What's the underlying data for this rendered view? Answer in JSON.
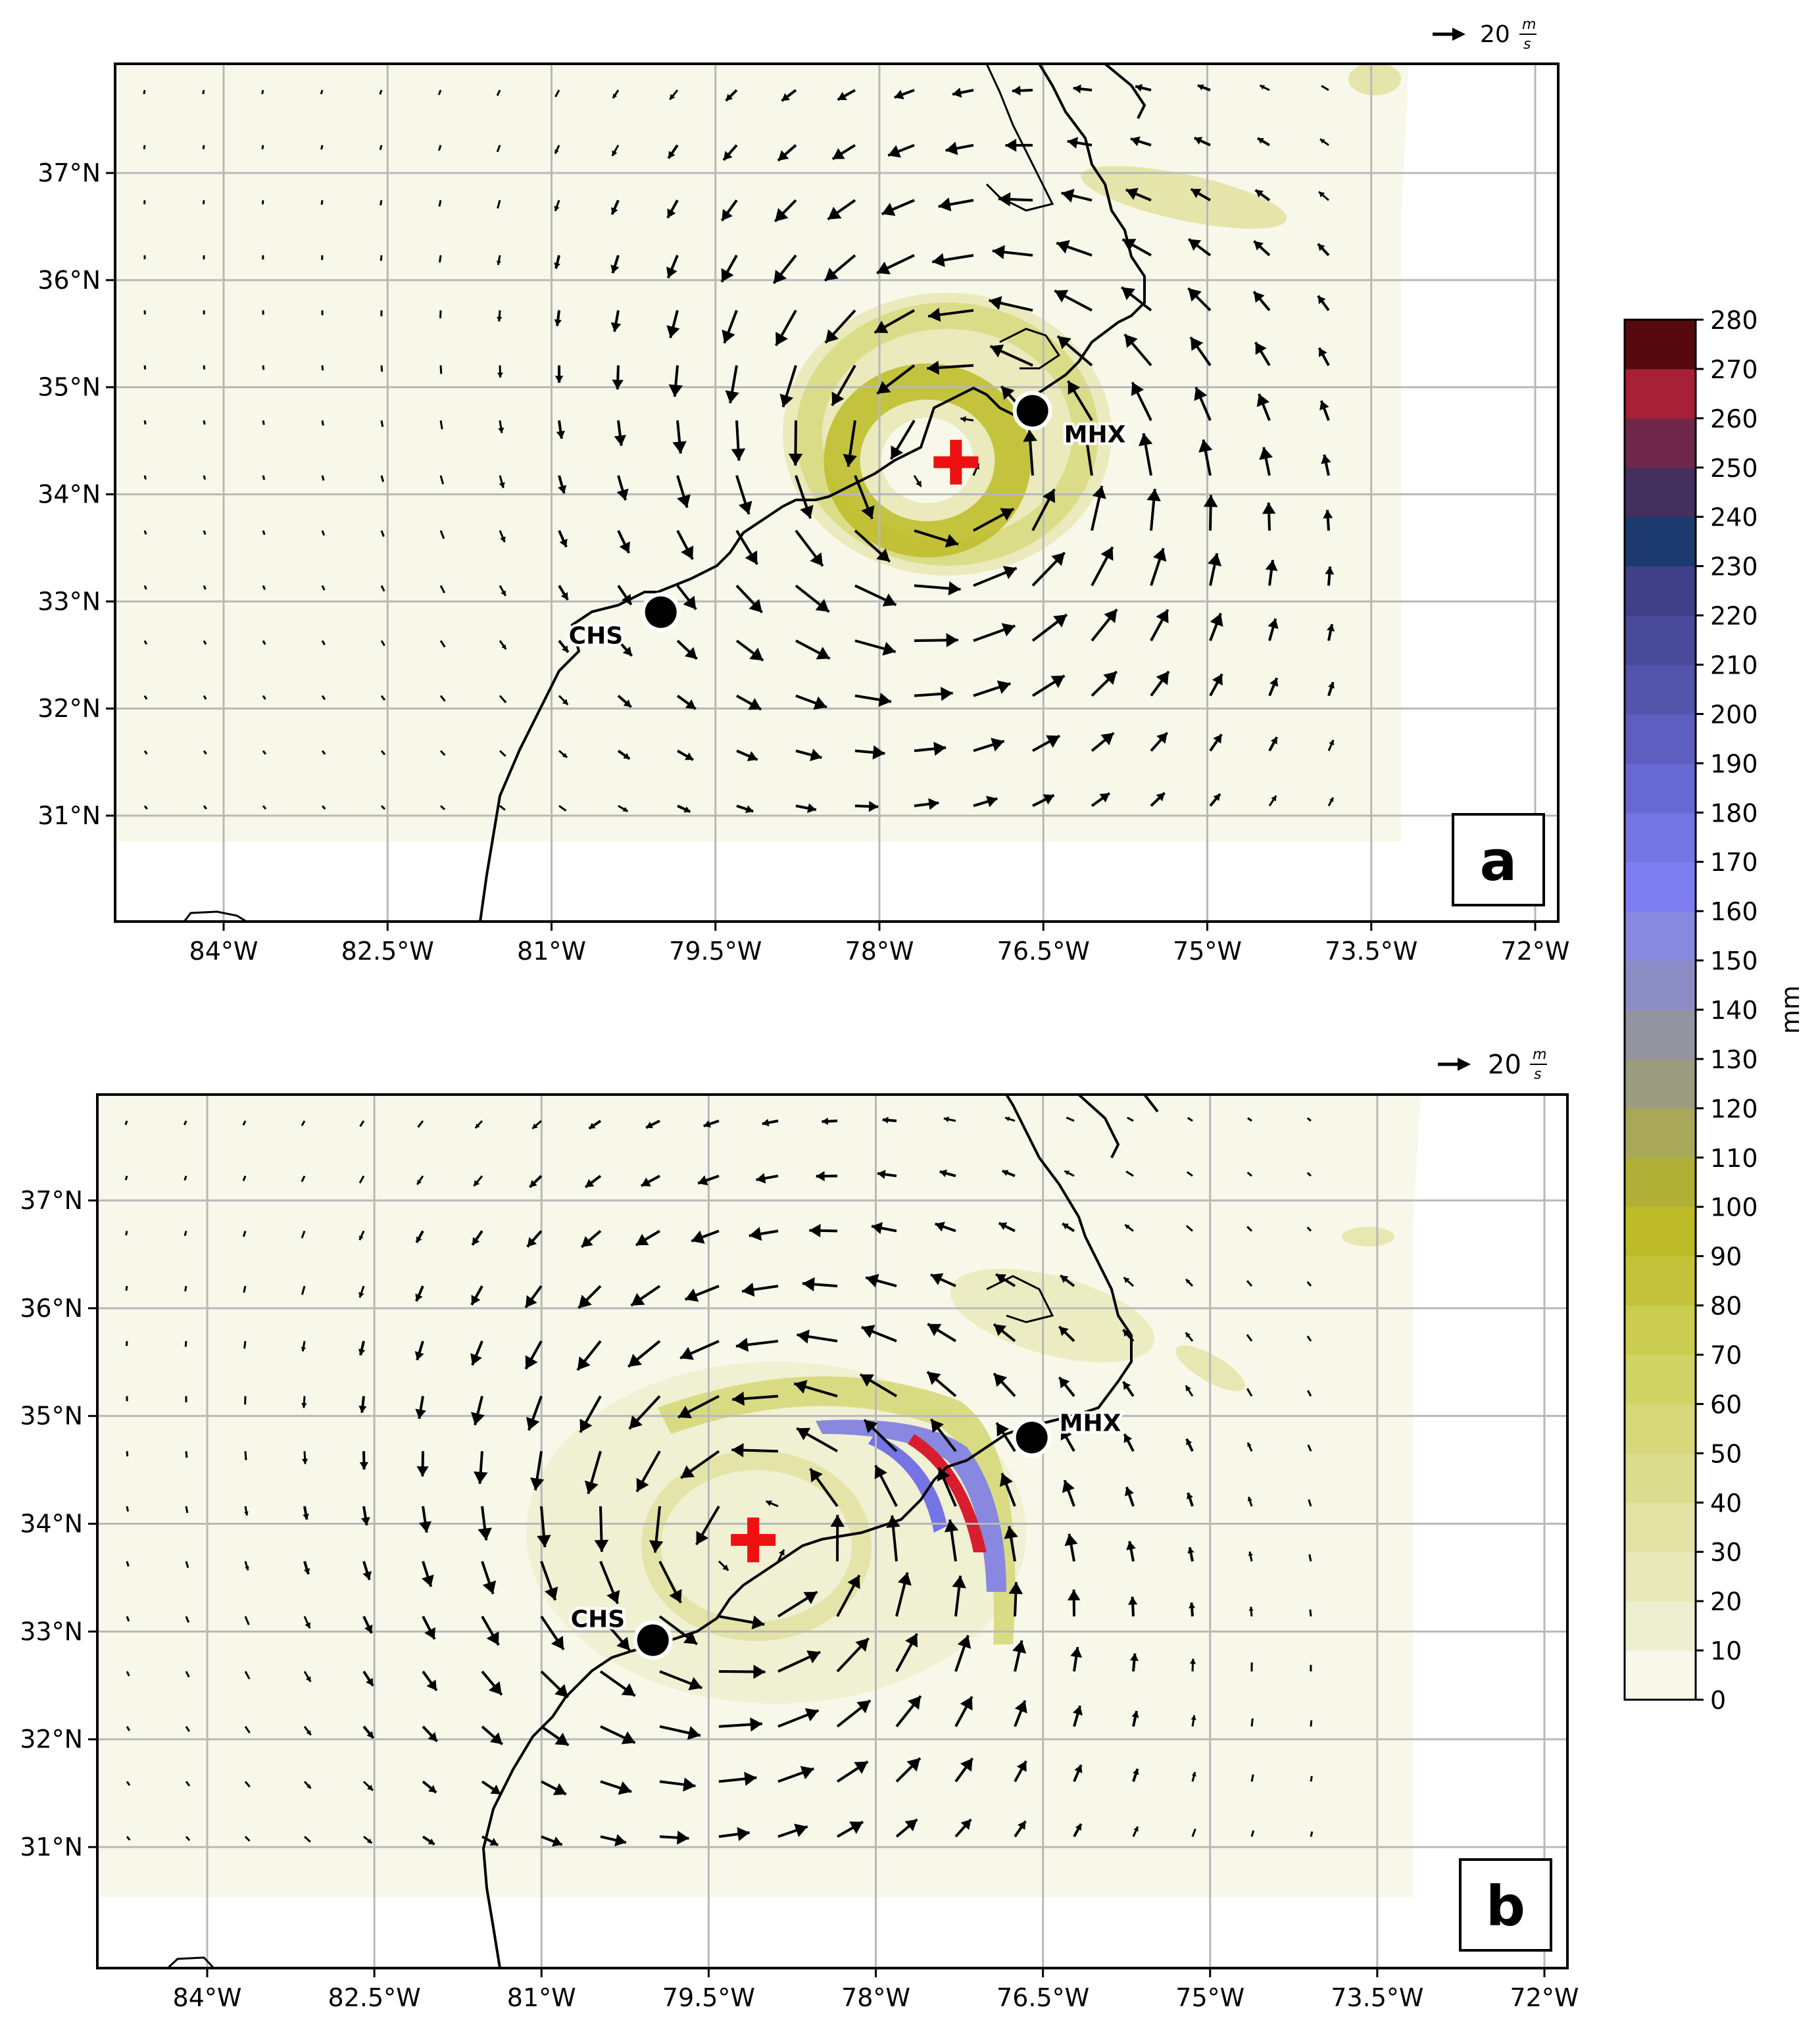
{
  "panels": [
    {
      "id": "a",
      "label": "a",
      "x_ticks": [
        "84°W",
        "82.5°W",
        "81°W",
        "79.5°W",
        "78°W",
        "76.5°W",
        "75°W",
        "73.5°W",
        "72°W"
      ],
      "y_ticks": [
        "37°N",
        "36°N",
        "35°N",
        "34°N",
        "33°N",
        "32°N",
        "31°N"
      ],
      "stations": [
        {
          "name": "MHX",
          "lon": -76.6,
          "lat": 34.78
        },
        {
          "name": "CHS",
          "lon": -80.0,
          "lat": 32.9
        }
      ],
      "storm_center": {
        "lon": -77.3,
        "lat": 34.3
      },
      "reference_vector": {
        "value": "20",
        "unit_num": "m",
        "unit_den": "s"
      }
    },
    {
      "id": "b",
      "label": "b",
      "x_ticks": [
        "84°W",
        "82.5°W",
        "81°W",
        "79.5°W",
        "78°W",
        "76.5°W",
        "75°W",
        "73.5°W",
        "72°W"
      ],
      "y_ticks": [
        "37°N",
        "36°N",
        "35°N",
        "34°N",
        "33°N",
        "32°N",
        "31°N"
      ],
      "stations": [
        {
          "name": "MHX",
          "lon": -76.6,
          "lat": 34.8
        },
        {
          "name": "CHS",
          "lon": -80.0,
          "lat": 32.92
        }
      ],
      "storm_center": {
        "lon": -79.1,
        "lat": 33.85
      },
      "reference_vector": {
        "value": "20",
        "unit_num": "m",
        "unit_den": "s"
      }
    }
  ],
  "colorbar": {
    "unit": "mm",
    "ticks": [
      "0",
      "10",
      "20",
      "30",
      "40",
      "50",
      "60",
      "70",
      "80",
      "90",
      "100",
      "110",
      "120",
      "130",
      "140",
      "150",
      "160",
      "170",
      "180",
      "190",
      "200",
      "210",
      "220",
      "230",
      "240",
      "250",
      "260",
      "270",
      "280"
    ],
    "colors": [
      "#f8f8ea",
      "#eeeed0",
      "#e8e8b8",
      "#e2e2a4",
      "#dcdc8e",
      "#d6d87a",
      "#d0d464",
      "#cacc50",
      "#c3c23a",
      "#bdbc28",
      "#b0b036",
      "#a8a858",
      "#9c9c80",
      "#9494a0",
      "#8c8cc4",
      "#8888e0",
      "#7e7ef2",
      "#7474e4",
      "#6868d2",
      "#5e5ec0",
      "#5454aa",
      "#4a4a9a",
      "#404088",
      "#1c3a6e",
      "#44305e",
      "#70284a",
      "#a82038",
      "#d81e2e",
      "#ef1622",
      "#560a10"
    ]
  }
}
